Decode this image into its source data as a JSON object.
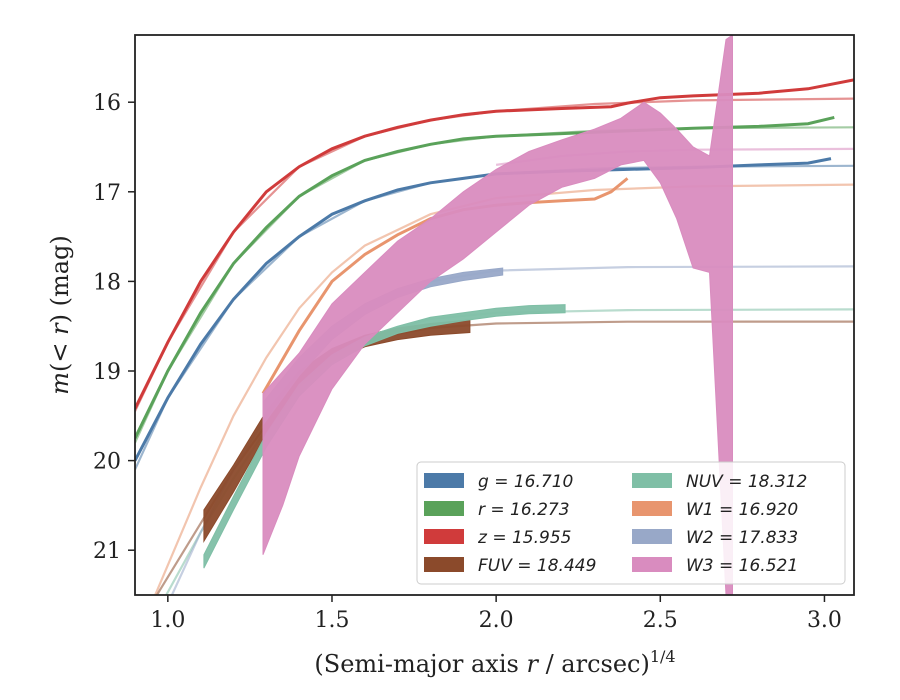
{
  "chart_data": {
    "type": "line",
    "xlabel": "(Semi-major axis r / arcsec)^1/4",
    "ylabel": "m(<r) (mag)",
    "xlim": [
      0.9,
      3.09
    ],
    "ylim": [
      21.5,
      15.25
    ],
    "y_inverted": true,
    "x_ticks": [
      1.0,
      1.5,
      2.0,
      2.5,
      3.0
    ],
    "x_tick_labels": [
      "1.0",
      "1.5",
      "2.0",
      "2.5",
      "3.0"
    ],
    "y_ticks": [
      16,
      17,
      18,
      19,
      20,
      21
    ],
    "y_tick_labels": [
      "16",
      "17",
      "18",
      "19",
      "20",
      "21"
    ],
    "grid": false,
    "legend_position": "lower-right",
    "series": [
      {
        "name": "g",
        "label": "g = 16.710",
        "color": "#4c7aa8",
        "style": "line",
        "points": [
          [
            0.9,
            20.0
          ],
          [
            1.0,
            19.3
          ],
          [
            1.1,
            18.7
          ],
          [
            1.2,
            18.2
          ],
          [
            1.3,
            17.8
          ],
          [
            1.4,
            17.5
          ],
          [
            1.5,
            17.25
          ],
          [
            1.6,
            17.1
          ],
          [
            1.7,
            16.98
          ],
          [
            1.8,
            16.9
          ],
          [
            1.9,
            16.85
          ],
          [
            2.0,
            16.8
          ],
          [
            2.2,
            16.77
          ],
          [
            2.4,
            16.75
          ],
          [
            2.6,
            16.73
          ],
          [
            2.8,
            16.7
          ],
          [
            2.95,
            16.68
          ],
          [
            3.02,
            16.63
          ]
        ],
        "model_points": [
          [
            0.9,
            20.1
          ],
          [
            1.0,
            19.3
          ],
          [
            1.2,
            18.2
          ],
          [
            1.4,
            17.5
          ],
          [
            1.6,
            17.1
          ],
          [
            1.8,
            16.9
          ],
          [
            2.0,
            16.8
          ],
          [
            2.3,
            16.74
          ],
          [
            2.6,
            16.72
          ],
          [
            3.09,
            16.71
          ]
        ]
      },
      {
        "name": "r",
        "label": "r = 16.273",
        "color": "#5aa25a",
        "style": "line",
        "points": [
          [
            0.9,
            19.75
          ],
          [
            1.0,
            19.0
          ],
          [
            1.1,
            18.35
          ],
          [
            1.2,
            17.8
          ],
          [
            1.3,
            17.4
          ],
          [
            1.4,
            17.05
          ],
          [
            1.5,
            16.82
          ],
          [
            1.6,
            16.65
          ],
          [
            1.7,
            16.55
          ],
          [
            1.8,
            16.47
          ],
          [
            1.9,
            16.41
          ],
          [
            2.0,
            16.38
          ],
          [
            2.2,
            16.35
          ],
          [
            2.4,
            16.32
          ],
          [
            2.6,
            16.29
          ],
          [
            2.8,
            16.27
          ],
          [
            2.95,
            16.24
          ],
          [
            3.03,
            16.17
          ]
        ],
        "model_points": [
          [
            0.9,
            19.8
          ],
          [
            1.0,
            19.0
          ],
          [
            1.2,
            17.8
          ],
          [
            1.4,
            17.05
          ],
          [
            1.6,
            16.65
          ],
          [
            1.8,
            16.47
          ],
          [
            2.0,
            16.38
          ],
          [
            2.3,
            16.32
          ],
          [
            2.6,
            16.29
          ],
          [
            3.09,
            16.28
          ]
        ]
      },
      {
        "name": "z",
        "label": "z = 15.955",
        "color": "#d03b3b",
        "style": "line",
        "points": [
          [
            0.9,
            19.42
          ],
          [
            1.0,
            18.68
          ],
          [
            1.1,
            18.0
          ],
          [
            1.2,
            17.45
          ],
          [
            1.3,
            17.0
          ],
          [
            1.4,
            16.72
          ],
          [
            1.5,
            16.52
          ],
          [
            1.6,
            16.38
          ],
          [
            1.7,
            16.28
          ],
          [
            1.8,
            16.2
          ],
          [
            1.9,
            16.14
          ],
          [
            2.0,
            16.1
          ],
          [
            2.2,
            16.07
          ],
          [
            2.35,
            16.05
          ],
          [
            2.4,
            16.01
          ],
          [
            2.5,
            15.95
          ],
          [
            2.6,
            15.93
          ],
          [
            2.8,
            15.9
          ],
          [
            2.95,
            15.85
          ],
          [
            3.09,
            15.75
          ]
        ],
        "model_points": [
          [
            0.9,
            19.45
          ],
          [
            1.0,
            18.68
          ],
          [
            1.2,
            17.45
          ],
          [
            1.4,
            16.72
          ],
          [
            1.6,
            16.38
          ],
          [
            1.8,
            16.2
          ],
          [
            2.0,
            16.1
          ],
          [
            2.3,
            16.02
          ],
          [
            2.6,
            15.98
          ],
          [
            3.09,
            15.96
          ]
        ]
      },
      {
        "name": "FUV",
        "label": "FUV = 18.449",
        "color": "#8b4a2b",
        "style": "band",
        "upper": [
          [
            1.11,
            20.55
          ],
          [
            1.2,
            20.05
          ],
          [
            1.3,
            19.45
          ],
          [
            1.4,
            19.0
          ],
          [
            1.5,
            18.75
          ],
          [
            1.6,
            18.6
          ],
          [
            1.7,
            18.52
          ],
          [
            1.8,
            18.47
          ],
          [
            1.92,
            18.43
          ]
        ],
        "lower": [
          [
            1.11,
            20.9
          ],
          [
            1.2,
            20.35
          ],
          [
            1.3,
            19.7
          ],
          [
            1.4,
            19.18
          ],
          [
            1.5,
            18.9
          ],
          [
            1.6,
            18.73
          ],
          [
            1.7,
            18.65
          ],
          [
            1.8,
            18.6
          ],
          [
            1.92,
            18.57
          ]
        ],
        "model_points": [
          [
            0.95,
            21.6
          ],
          [
            1.1,
            20.7
          ],
          [
            1.2,
            20.1
          ],
          [
            1.3,
            19.6
          ],
          [
            1.4,
            19.15
          ],
          [
            1.5,
            18.85
          ],
          [
            1.6,
            18.65
          ],
          [
            1.8,
            18.52
          ],
          [
            2.0,
            18.47
          ],
          [
            2.4,
            18.45
          ],
          [
            3.09,
            18.449
          ]
        ]
      },
      {
        "name": "NUV",
        "label": "NUV = 18.312",
        "color": "#7fbfa6",
        "style": "band",
        "upper": [
          [
            1.11,
            21.05
          ],
          [
            1.2,
            20.4
          ],
          [
            1.3,
            19.7
          ],
          [
            1.4,
            19.15
          ],
          [
            1.5,
            18.82
          ],
          [
            1.6,
            18.62
          ],
          [
            1.7,
            18.5
          ],
          [
            1.8,
            18.4
          ],
          [
            1.9,
            18.35
          ],
          [
            2.0,
            18.3
          ],
          [
            2.1,
            18.27
          ],
          [
            2.21,
            18.26
          ]
        ],
        "lower": [
          [
            1.11,
            21.2
          ],
          [
            1.2,
            20.55
          ],
          [
            1.3,
            19.85
          ],
          [
            1.4,
            19.28
          ],
          [
            1.5,
            18.93
          ],
          [
            1.6,
            18.72
          ],
          [
            1.7,
            18.58
          ],
          [
            1.8,
            18.5
          ],
          [
            1.9,
            18.44
          ],
          [
            2.0,
            18.39
          ],
          [
            2.1,
            18.36
          ],
          [
            2.21,
            18.35
          ]
        ],
        "model_points": [
          [
            0.98,
            21.6
          ],
          [
            1.1,
            20.8
          ],
          [
            1.2,
            20.2
          ],
          [
            1.3,
            19.65
          ],
          [
            1.4,
            19.15
          ],
          [
            1.5,
            18.85
          ],
          [
            1.6,
            18.62
          ],
          [
            1.8,
            18.42
          ],
          [
            2.0,
            18.35
          ],
          [
            2.4,
            18.32
          ],
          [
            3.09,
            18.312
          ]
        ]
      },
      {
        "name": "W1",
        "label": "W1 = 16.920",
        "color": "#e8956e",
        "style": "line",
        "points": [
          [
            1.29,
            19.25
          ],
          [
            1.4,
            18.55
          ],
          [
            1.5,
            18.0
          ],
          [
            1.6,
            17.7
          ],
          [
            1.7,
            17.48
          ],
          [
            1.8,
            17.3
          ],
          [
            1.9,
            17.2
          ],
          [
            2.0,
            17.15
          ],
          [
            2.1,
            17.12
          ],
          [
            2.2,
            17.1
          ],
          [
            2.3,
            17.08
          ],
          [
            2.35,
            17.0
          ],
          [
            2.4,
            16.85
          ]
        ],
        "model_points": [
          [
            0.95,
            21.6
          ],
          [
            1.1,
            20.3
          ],
          [
            1.2,
            19.5
          ],
          [
            1.3,
            18.85
          ],
          [
            1.4,
            18.3
          ],
          [
            1.5,
            17.9
          ],
          [
            1.6,
            17.6
          ],
          [
            1.8,
            17.25
          ],
          [
            2.0,
            17.07
          ],
          [
            2.3,
            16.98
          ],
          [
            2.6,
            16.94
          ],
          [
            3.09,
            16.92
          ]
        ]
      },
      {
        "name": "W2",
        "label": "W2 = 17.833",
        "color": "#98a8c8",
        "style": "band",
        "upper": [
          [
            1.29,
            19.35
          ],
          [
            1.4,
            18.85
          ],
          [
            1.5,
            18.5
          ],
          [
            1.6,
            18.25
          ],
          [
            1.7,
            18.08
          ],
          [
            1.8,
            17.97
          ],
          [
            1.9,
            17.9
          ],
          [
            2.02,
            17.85
          ]
        ],
        "lower": [
          [
            1.29,
            19.6
          ],
          [
            1.4,
            19.05
          ],
          [
            1.5,
            18.65
          ],
          [
            1.6,
            18.37
          ],
          [
            1.7,
            18.18
          ],
          [
            1.8,
            18.06
          ],
          [
            1.9,
            17.99
          ],
          [
            2.02,
            17.93
          ]
        ],
        "model_points": [
          [
            1.0,
            21.6
          ],
          [
            1.1,
            20.8
          ],
          [
            1.2,
            20.1
          ],
          [
            1.3,
            19.5
          ],
          [
            1.4,
            19.0
          ],
          [
            1.5,
            18.6
          ],
          [
            1.6,
            18.3
          ],
          [
            1.8,
            18.0
          ],
          [
            2.0,
            17.88
          ],
          [
            2.4,
            17.84
          ],
          [
            3.09,
            17.833
          ]
        ]
      },
      {
        "name": "W3",
        "label": "W3 = 16.521",
        "color": "#d98cbf",
        "style": "band",
        "upper": [
          [
            1.29,
            19.25
          ],
          [
            1.4,
            18.8
          ],
          [
            1.5,
            18.25
          ],
          [
            1.6,
            17.9
          ],
          [
            1.7,
            17.55
          ],
          [
            1.8,
            17.3
          ],
          [
            1.9,
            17.0
          ],
          [
            2.0,
            16.75
          ],
          [
            2.1,
            16.55
          ],
          [
            2.2,
            16.42
          ],
          [
            2.3,
            16.3
          ],
          [
            2.38,
            16.18
          ],
          [
            2.45,
            16.0
          ],
          [
            2.5,
            16.12
          ],
          [
            2.55,
            16.3
          ],
          [
            2.6,
            16.5
          ],
          [
            2.65,
            16.6
          ],
          [
            2.7,
            15.3
          ],
          [
            2.72,
            15.25
          ]
        ],
        "lower": [
          [
            1.29,
            21.05
          ],
          [
            1.35,
            20.5
          ],
          [
            1.4,
            19.95
          ],
          [
            1.5,
            19.2
          ],
          [
            1.6,
            18.7
          ],
          [
            1.7,
            18.35
          ],
          [
            1.8,
            18.0
          ],
          [
            1.9,
            17.75
          ],
          [
            2.0,
            17.45
          ],
          [
            2.1,
            17.15
          ],
          [
            2.2,
            16.95
          ],
          [
            2.3,
            16.85
          ],
          [
            2.38,
            16.7
          ],
          [
            2.45,
            16.65
          ],
          [
            2.5,
            16.9
          ],
          [
            2.55,
            17.3
          ],
          [
            2.6,
            17.85
          ],
          [
            2.65,
            17.9
          ],
          [
            2.7,
            21.5
          ],
          [
            2.72,
            21.5
          ]
        ],
        "model_points": [
          [
            2.0,
            16.7
          ],
          [
            2.2,
            16.6
          ],
          [
            2.4,
            16.55
          ],
          [
            2.6,
            16.53
          ],
          [
            3.09,
            16.521
          ]
        ]
      }
    ],
    "legend": {
      "columns": [
        [
          {
            "series": "g",
            "text": "g = 16.710"
          },
          {
            "series": "r",
            "text": "r = 16.273"
          },
          {
            "series": "z",
            "text": "z = 15.955"
          },
          {
            "series": "FUV",
            "text": "FUV = 18.449"
          }
        ],
        [
          {
            "series": "NUV",
            "text": "NUV = 18.312"
          },
          {
            "series": "W1",
            "text": "W1 = 16.920"
          },
          {
            "series": "W2",
            "text": "W2 = 17.833"
          },
          {
            "series": "W3",
            "text": "W3 = 16.521"
          }
        ]
      ]
    }
  }
}
